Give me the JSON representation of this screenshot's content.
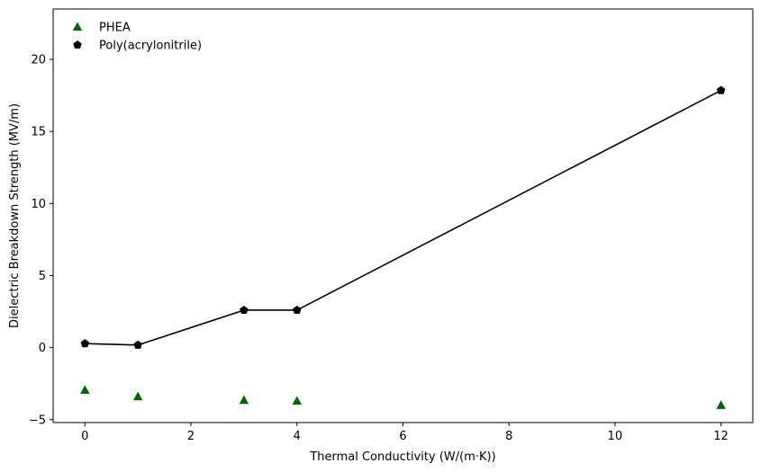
{
  "chart_data": {
    "type": "scatter",
    "xlabel": "Thermal Conductivity (W/(m·K))",
    "ylabel": "Dielectric Breakdown Strength (MV/m)",
    "xlim": [
      -0.6,
      12.6
    ],
    "ylim": [
      -5.2,
      23.5
    ],
    "xticks": [
      0,
      2,
      4,
      6,
      8,
      10,
      12
    ],
    "yticks": [
      -5,
      0,
      5,
      10,
      15,
      20
    ],
    "grid": false,
    "legend_position": "top-left",
    "series": [
      {
        "name": "PHEA",
        "marker": "triangle",
        "color": "#006400",
        "connected": false,
        "x": [
          0,
          1,
          3,
          4,
          12
        ],
        "y": [
          -2.95,
          -3.4,
          -3.65,
          -3.7,
          -4.0
        ]
      },
      {
        "name": "Poly(acrylonitrile)",
        "marker": "pentagon",
        "color": "#000000",
        "connected": true,
        "x": [
          0,
          1,
          3,
          4,
          12
        ],
        "y": [
          0.28,
          0.18,
          2.6,
          2.6,
          17.85
        ]
      }
    ]
  }
}
